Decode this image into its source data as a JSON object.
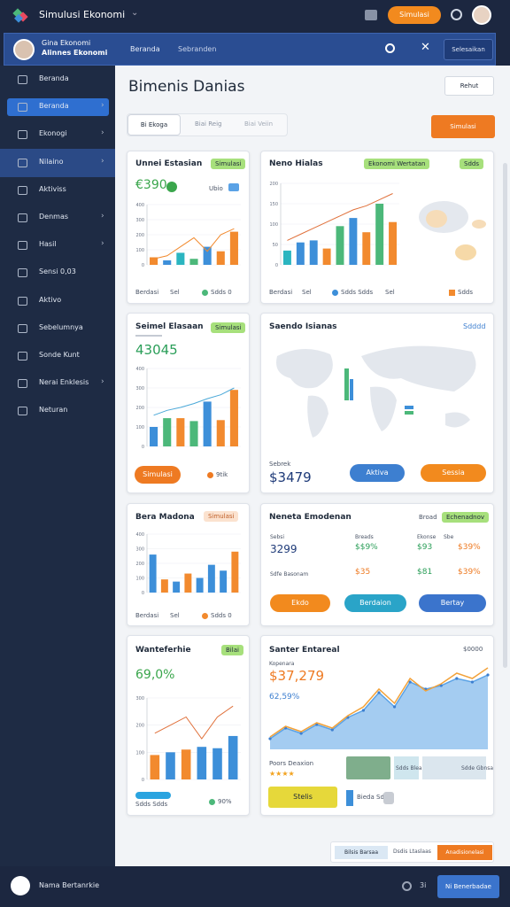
{
  "header": {
    "app_title": "Simulusi Ekonomi",
    "cta": "Simulasi"
  },
  "subbar": {
    "user_name": "Gina Ekonomi",
    "user_role": "Alinnes Ekonomi",
    "tabs": [
      "Beranda",
      "Sebranden"
    ],
    "action": "Selesaikan"
  },
  "sidebar": {
    "active": 1,
    "hover": 3,
    "items": [
      {
        "label": "Beranda",
        "arrow": false
      },
      {
        "label": "Beranda",
        "arrow": true
      },
      {
        "label": "Ekonogi",
        "arrow": true
      },
      {
        "label": "Nilaino",
        "arrow": true
      },
      {
        "label": "Aktiviss",
        "arrow": false
      },
      {
        "label": "Denmas",
        "arrow": true
      },
      {
        "label": "Hasil",
        "arrow": true
      },
      {
        "label": "Sensi 0,03",
        "arrow": false
      },
      {
        "label": "Aktivo",
        "arrow": false
      },
      {
        "label": "Sebelumnya",
        "arrow": false
      },
      {
        "label": "Sonde Kunt",
        "arrow": false
      },
      {
        "label": "Nerai Enklesis",
        "arrow": true
      },
      {
        "label": "Neturan",
        "arrow": false
      }
    ]
  },
  "main": {
    "title": "Bimenis Danias",
    "top_button": "Rehut",
    "filters": [
      "Bi Ekoga",
      "Biai Reig",
      "Biai Veiin"
    ],
    "action": "Simulasi"
  },
  "cards": [
    {
      "title": "Unnei Estasian",
      "badge": "Simulasi",
      "value": "€390",
      "chip": "Ubio",
      "footer": [
        "Berdasi",
        "Sel",
        "Sdds 0"
      ],
      "chart": {
        "type": "bar",
        "ylim": [
          0,
          400
        ],
        "yticks": [
          0,
          100,
          200,
          300,
          400
        ],
        "bars": [
          50,
          30,
          80,
          40,
          120,
          90,
          220
        ],
        "colors": [
          "#f28a2e",
          "#3d8fd9",
          "#2bb5c0",
          "#4cb87a",
          "#3d8fd9",
          "#f28a2e",
          "#f28a2e"
        ],
        "line": [
          40,
          60,
          120,
          180,
          90,
          200,
          240
        ],
        "line_color": "#f28a2e"
      }
    },
    {
      "title": "Neno Hialas",
      "badges": [
        "Ekonomi Wertatan",
        "Sdds"
      ],
      "footer": [
        "Berdasi",
        "Sel",
        "Sdds Sdds",
        "Sel",
        "Sdds"
      ],
      "chart": {
        "type": "bar",
        "ylim": [
          0,
          200
        ],
        "yticks": [
          0,
          50,
          100,
          150,
          200
        ],
        "bars": [
          35,
          55,
          60,
          40,
          95,
          115,
          80,
          150,
          105
        ],
        "colors": [
          "#2bb5c0",
          "#3d8fd9",
          "#3d8fd9",
          "#f28a2e",
          "#4cb87a",
          "#3d8fd9",
          "#f28a2e",
          "#4cb87a",
          "#f28a2e"
        ],
        "line": [
          60,
          75,
          90,
          105,
          120,
          135,
          145,
          160,
          175
        ],
        "line_color": "#e0703a"
      }
    },
    {
      "title": "Seimel Elasaan",
      "badge": "Simulasi",
      "value": "43045",
      "buttons": [
        "Simulasi",
        "9tik"
      ],
      "chart": {
        "type": "bar",
        "ylim": [
          0,
          400
        ],
        "yticks": [
          0,
          100,
          200,
          300,
          400
        ],
        "bars": [
          100,
          145,
          145,
          130,
          230,
          135,
          290
        ],
        "colors": [
          "#3d8fd9",
          "#4cb87a",
          "#f28a2e",
          "#4cb87a",
          "#3d8fd9",
          "#f28a2e",
          "#f28a2e"
        ],
        "line": [
          160,
          185,
          200,
          220,
          245,
          265,
          300
        ],
        "line_color": "#4aa8d8"
      }
    },
    {
      "title": "Saendo Isianas",
      "corner": "Sdddd",
      "label": "Sebrek",
      "value": "$3479",
      "buttons": [
        "Aktiva",
        "Sessia"
      ]
    },
    {
      "title": "Bera Madona",
      "badge": "Simulasi",
      "footer": [
        "Berdasi",
        "Sel",
        "Sdds 0"
      ],
      "chart": {
        "type": "bar",
        "ylim": [
          0,
          400
        ],
        "yticks": [
          0,
          100,
          200,
          300,
          400
        ],
        "bars": [
          260,
          90,
          75,
          130,
          100,
          190,
          150,
          280
        ],
        "colors": [
          "#3d8fd9",
          "#f28a2e",
          "#3d8fd9",
          "#f28a2e",
          "#3d8fd9",
          "#3d8fd9",
          "#3d8fd9",
          "#f28a2e"
        ]
      }
    },
    {
      "title": "Neneta Emodenan",
      "corner": "Broad",
      "badge": "Echenadnov",
      "stats": [
        [
          "Sebsi",
          "Breads",
          "Ekonse",
          "Sbe"
        ],
        [
          "3299",
          "$$9%",
          "$93",
          "$39%"
        ],
        [
          "Sdfe Basonam",
          "$35",
          "$81",
          "$39%"
        ]
      ],
      "buttons": [
        "Ekdo",
        "Berdaion",
        "Bertay"
      ]
    },
    {
      "title": "Wanteferhie",
      "badge": "Bilai",
      "value": "69,0%",
      "footer": [
        "Sdds Sdds",
        "90%"
      ],
      "chart": {
        "type": "bar",
        "ylim": [
          0,
          300
        ],
        "yticks": [
          0,
          100,
          200,
          300
        ],
        "bars": [
          90,
          100,
          110,
          120,
          115,
          160
        ],
        "colors": [
          "#f28a2e",
          "#3d8fd9",
          "#f28a2e",
          "#3d8fd9",
          "#3d8fd9",
          "#3d8fd9"
        ],
        "line": [
          170,
          200,
          230,
          150,
          230,
          270
        ],
        "line_color": "#e0703a"
      }
    },
    {
      "title": "Santer Entareal",
      "corner": "$0000",
      "label": "Kopenara",
      "value": "$37,279",
      "change": "62,59%",
      "review": "Poors Deaxion",
      "stars": "★★★★",
      "thumbs": [
        "Sdds Bleas",
        "Sdde Gbnsa"
      ],
      "button": "Stelis",
      "note": "Bieda Sdeta",
      "chart": {
        "type": "area",
        "ylim": [
          0,
          250
        ],
        "series": [
          {
            "color": "#5aa2e6",
            "values": [
              30,
              60,
              45,
              70,
              55,
              90,
              110,
              160,
              120,
              190,
              170,
              180,
              200,
              190,
              210
            ]
          },
          {
            "color": "#f2a23a",
            "values": [
              35,
              65,
              50,
              75,
              60,
              95,
              120,
              170,
              130,
              200,
              165,
              185,
              215,
              200,
              230
            ]
          }
        ]
      }
    }
  ],
  "float_bar": [
    "Bilsis Barsaa",
    "Dsdis Ltaslaas",
    "Anadisionelasi"
  ],
  "footer": {
    "user": "Nama Bertanrkie",
    "count": "3i",
    "action": "Ni Benerbadae"
  }
}
